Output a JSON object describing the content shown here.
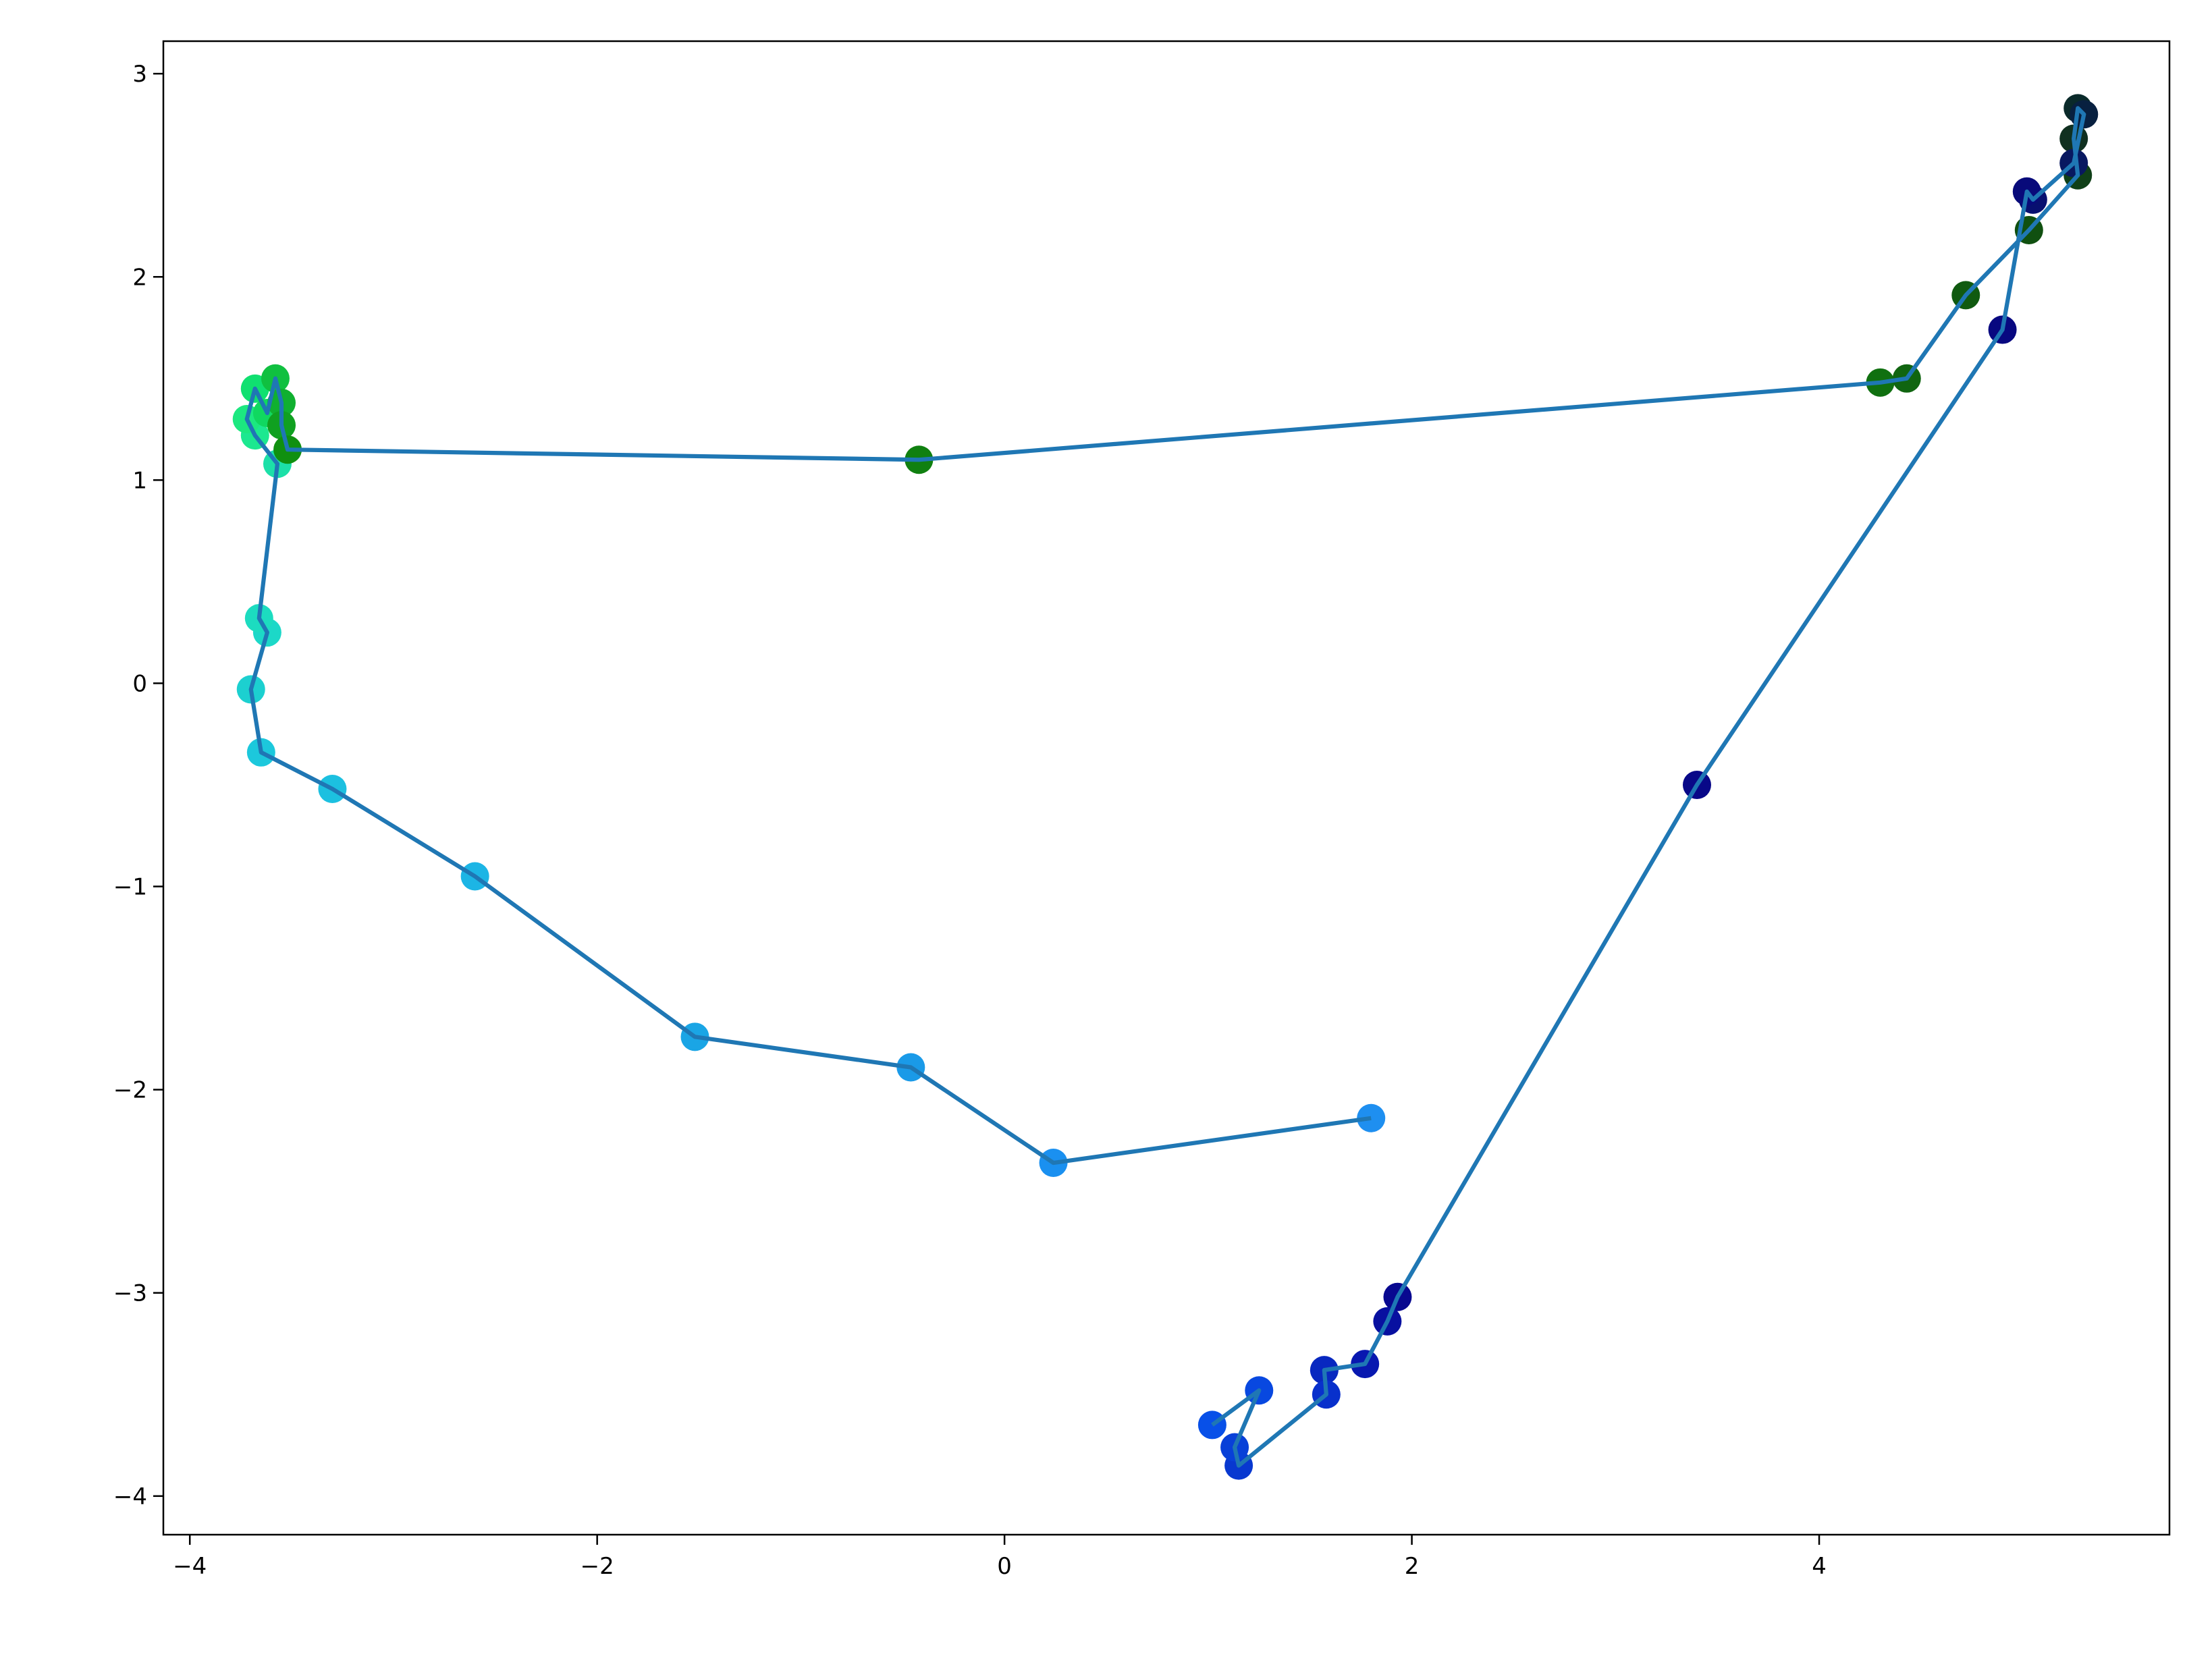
{
  "chart_data": {
    "type": "scatter",
    "x": [
      1.8,
      0.24,
      -0.46,
      -1.52,
      -2.6,
      -3.3,
      -3.65,
      -3.7,
      -3.62,
      -3.66,
      -3.57,
      -3.68,
      -3.72,
      -3.68,
      -3.62,
      -3.58,
      -3.55,
      -3.55,
      -3.52,
      -0.42,
      4.3,
      4.43,
      4.72,
      5.03,
      5.27,
      5.25,
      5.27,
      5.3,
      5.25,
      5.05,
      5.02,
      4.9,
      3.4,
      1.93,
      1.88,
      1.77,
      1.57,
      1.58,
      1.15,
      1.13,
      1.25,
      1.02
    ],
    "y": [
      -2.14,
      -2.36,
      -1.89,
      -1.74,
      -0.95,
      -0.52,
      -0.34,
      -0.03,
      0.25,
      0.32,
      1.08,
      1.22,
      1.3,
      1.45,
      1.33,
      1.5,
      1.38,
      1.27,
      1.15,
      1.1,
      1.48,
      1.5,
      1.91,
      2.23,
      2.5,
      2.68,
      2.83,
      2.8,
      2.56,
      2.38,
      2.42,
      1.74,
      -0.5,
      -3.02,
      -3.14,
      -3.35,
      -3.38,
      -3.5,
      -3.85,
      -3.76,
      -3.48,
      -3.65
    ],
    "colors": [
      "#1e8ff0",
      "#1a90f0",
      "#1a9ae8",
      "#1aa5e5",
      "#1cb5e5",
      "#1cc0e0",
      "#1cc8dc",
      "#1cd0d0",
      "#1cd8c8",
      "#1cdcc0",
      "#1ce0a8",
      "#1ce890",
      "#1ce880",
      "#10e070",
      "#10d860",
      "#10c040",
      "#10b030",
      "#10a020",
      "#109010",
      "#108010",
      "#107010",
      "#106510",
      "#105a10",
      "#105010",
      "#104018",
      "#103020",
      "#0a2a2a",
      "#082040",
      "#081860",
      "#081070",
      "#080a7a",
      "#080880",
      "#080888",
      "#080890",
      "#0810a0",
      "#0818b0",
      "#0828c0",
      "#0830cc",
      "#0838d0",
      "#0840d8",
      "#0848e0",
      "#0850e8"
    ],
    "line_color": "#1f77b4",
    "xlim": [
      -4.13,
      5.72
    ],
    "ylim": [
      -4.19,
      3.16
    ],
    "xticks": [
      {
        "value": -4,
        "label": "−4"
      },
      {
        "value": -2,
        "label": "−2"
      },
      0,
      2,
      4
    ],
    "yticks": [
      {
        "value": -4,
        "label": "−4"
      },
      {
        "value": -3,
        "label": "−3"
      },
      {
        "value": -2,
        "label": "−2"
      },
      {
        "value": -1,
        "label": "−1"
      },
      0,
      1,
      2,
      3
    ]
  }
}
